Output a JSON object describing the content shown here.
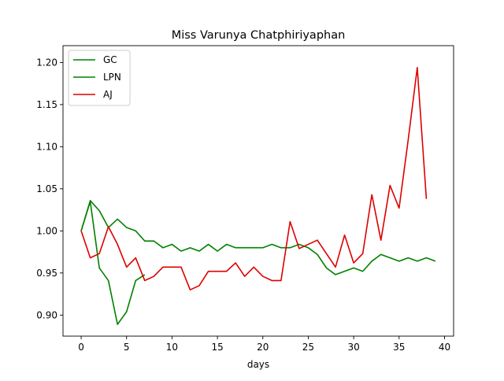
{
  "chart_data": {
    "type": "line",
    "title": "Miss Varunya Chatphiriyaphan",
    "xlabel": "days",
    "ylabel": "",
    "xlim": [
      -2,
      41
    ],
    "ylim": [
      0.875,
      1.22
    ],
    "x_ticks": [
      0,
      5,
      10,
      15,
      20,
      25,
      30,
      35,
      40
    ],
    "y_ticks": [
      0.9,
      0.95,
      1.0,
      1.05,
      1.1,
      1.15,
      1.2
    ],
    "grid": false,
    "legend_position": "top-left",
    "series": [
      {
        "name": "GC",
        "color": "#008000",
        "x": [
          0,
          1,
          2,
          3,
          4,
          5,
          6,
          7
        ],
        "y": [
          1.0,
          1.035,
          0.956,
          0.941,
          0.889,
          0.904,
          0.941,
          0.948
        ]
      },
      {
        "name": "LPN",
        "color": "#008000",
        "x": [
          0,
          1,
          2,
          3,
          4,
          5,
          6,
          7,
          8,
          9,
          10,
          11,
          12,
          13,
          14,
          15,
          16,
          17,
          18,
          19,
          20,
          21,
          22,
          23,
          24,
          25,
          26,
          27,
          28,
          29,
          30,
          31,
          32,
          33,
          34,
          35,
          36,
          37,
          38,
          39
        ],
        "y": [
          1.0,
          1.036,
          1.024,
          1.004,
          1.014,
          1.004,
          1.0,
          0.988,
          0.988,
          0.98,
          0.984,
          0.976,
          0.98,
          0.976,
          0.984,
          0.976,
          0.984,
          0.98,
          0.98,
          0.98,
          0.98,
          0.984,
          0.98,
          0.98,
          0.984,
          0.98,
          0.972,
          0.956,
          0.948,
          0.952,
          0.956,
          0.952,
          0.964,
          0.972,
          0.968,
          0.964,
          0.968,
          0.964,
          0.968,
          0.964
        ]
      },
      {
        "name": "AJ",
        "color": "#dd0000",
        "x": [
          0,
          1,
          2,
          3,
          4,
          5,
          6,
          7,
          8,
          9,
          10,
          11,
          12,
          13,
          14,
          15,
          16,
          17,
          18,
          19,
          20,
          21,
          22,
          23,
          24,
          25,
          26,
          27,
          28,
          29,
          30,
          31,
          32,
          33,
          34,
          35,
          36,
          37,
          38
        ],
        "y": [
          1.0,
          0.968,
          0.973,
          1.005,
          0.984,
          0.957,
          0.968,
          0.941,
          0.946,
          0.957,
          0.957,
          0.957,
          0.93,
          0.935,
          0.952,
          0.952,
          0.952,
          0.962,
          0.946,
          0.957,
          0.946,
          0.941,
          0.941,
          1.011,
          0.979,
          0.984,
          0.989,
          0.973,
          0.957,
          0.995,
          0.962,
          0.973,
          1.043,
          0.989,
          1.054,
          1.027,
          1.108,
          1.194,
          1.038
        ]
      }
    ]
  }
}
